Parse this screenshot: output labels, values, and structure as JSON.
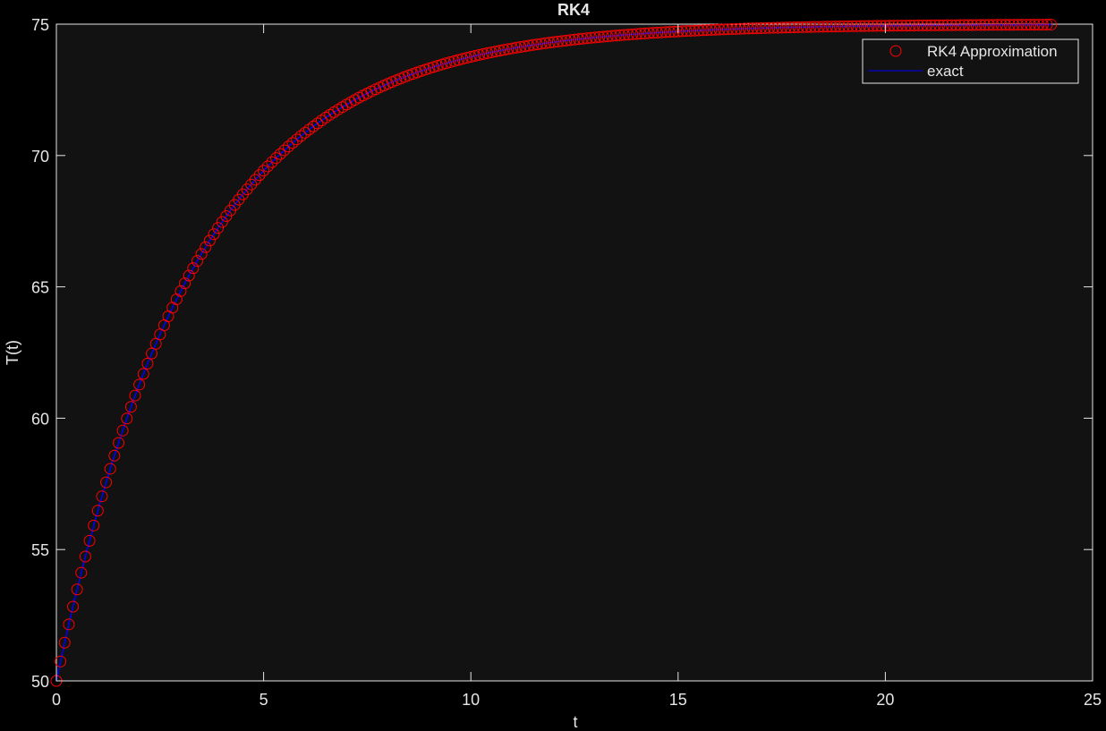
{
  "chart_data": {
    "type": "line",
    "title": "RK4",
    "xlabel": "t",
    "ylabel": "T(t)",
    "xlim": [
      0,
      25
    ],
    "ylim": [
      50,
      75
    ],
    "x_ticks": [
      "0",
      "5",
      "10",
      "15",
      "20",
      "25"
    ],
    "y_ticks": [
      "50",
      "55",
      "60",
      "65",
      "70",
      "75"
    ],
    "grid": false,
    "legend_position": "top-right",
    "background": "#121212",
    "series": [
      {
        "name": "RK4 Approximation",
        "kind": "scatter",
        "marker": "circle-open",
        "color": "#ff0000",
        "x_start": 0,
        "x_end": 24,
        "step": 0.1,
        "formula": "T(t) = 75 - 25*exp(-0.3*t)",
        "y_samples": [
          {
            "t": 0,
            "T": 50
          },
          {
            "t": 1,
            "T": 56.5
          },
          {
            "t": 2,
            "T": 61.3
          },
          {
            "t": 5,
            "T": 69.4
          },
          {
            "t": 10,
            "T": 73.8
          },
          {
            "t": 15,
            "T": 74.7
          },
          {
            "t": 20,
            "T": 74.9
          },
          {
            "t": 24,
            "T": 75.0
          }
        ]
      },
      {
        "name": "exact",
        "kind": "line",
        "color": "#0000ff",
        "x_start": 0,
        "x_end": 24,
        "formula": "T(t) = 75 - 25*exp(-0.3*t)"
      }
    ]
  }
}
